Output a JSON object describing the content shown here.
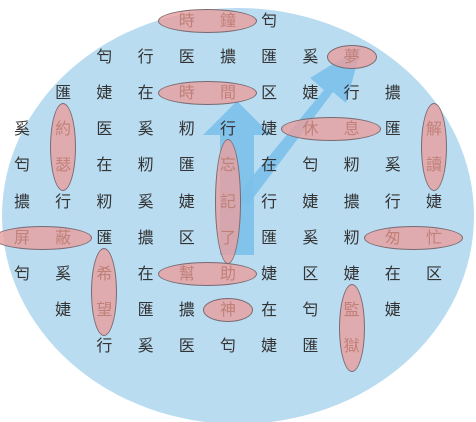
{
  "colors": {
    "background_circle": "#b9dcf1",
    "arrow": "#7cc0ea",
    "word_oval": "#e8a0a0",
    "grid_text": "#333333",
    "found_text": "#c08078"
  },
  "grid": {
    "rows": [
      [
        "",
        "",
        "",
        "",
        "時",
        "鐘",
        "匄",
        "",
        "",
        "",
        ""
      ],
      [
        "",
        "",
        "匄",
        "行",
        "医",
        "擃",
        "匯",
        "奚",
        "夢",
        "",
        ""
      ],
      [
        "",
        "匯",
        "婕",
        "在",
        "時",
        "間",
        "区",
        "婕",
        "行",
        "擃",
        ""
      ],
      [
        "奚",
        "約",
        "医",
        "奚",
        "籾",
        "行",
        "婕",
        "休",
        "息",
        "匯",
        "解"
      ],
      [
        "匄",
        "瑟",
        "在",
        "籾",
        "匯",
        "忘",
        "在",
        "匄",
        "籾",
        "奚",
        "讀"
      ],
      [
        "擃",
        "行",
        "籾",
        "奚",
        "婕",
        "記",
        "行",
        "婕",
        "擃",
        "行",
        "婕"
      ],
      [
        "屏",
        "蔽",
        "匯",
        "擃",
        "区",
        "了",
        "匯",
        "奚",
        "籾",
        "匆",
        "忙"
      ],
      [
        "匄",
        "奚",
        "希",
        "在",
        "幫",
        "助",
        "婕",
        "区",
        "婕",
        "在",
        "区"
      ],
      [
        "",
        "婕",
        "望",
        "匯",
        "擃",
        "神",
        "在",
        "匄",
        "監",
        "婕",
        ""
      ],
      [
        "",
        "",
        "行",
        "奚",
        "医",
        "匄",
        "婕",
        "匯",
        "獄",
        "",
        ""
      ]
    ]
  },
  "found_words": [
    {
      "word": "時鐘",
      "row": 0,
      "col": 4,
      "dir": "h",
      "len": 2
    },
    {
      "word": "夢",
      "row": 1,
      "col": 8,
      "dir": "h",
      "len": 1
    },
    {
      "word": "時間",
      "row": 2,
      "col": 4,
      "dir": "h",
      "len": 2
    },
    {
      "word": "約瑟",
      "row": 3,
      "col": 1,
      "dir": "v",
      "len": 2
    },
    {
      "word": "休息",
      "row": 3,
      "col": 7,
      "dir": "h",
      "len": 2
    },
    {
      "word": "解讀",
      "row": 3,
      "col": 10,
      "dir": "v",
      "len": 2
    },
    {
      "word": "忘記了",
      "row": 4,
      "col": 5,
      "dir": "v",
      "len": 3
    },
    {
      "word": "屏蔽",
      "row": 6,
      "col": 0,
      "dir": "h",
      "len": 2
    },
    {
      "word": "匆忙",
      "row": 6,
      "col": 9,
      "dir": "h",
      "len": 2
    },
    {
      "word": "希望",
      "row": 7,
      "col": 2,
      "dir": "v",
      "len": 2
    },
    {
      "word": "幫助",
      "row": 7,
      "col": 4,
      "dir": "h",
      "len": 2
    },
    {
      "word": "神",
      "row": 8,
      "col": 5,
      "dir": "h",
      "len": 1
    },
    {
      "word": "監獄",
      "row": 8,
      "col": 8,
      "dir": "v",
      "len": 2
    }
  ],
  "arrows": [
    {
      "name": "arrow-up",
      "icon": "up-arrow-icon"
    },
    {
      "name": "arrow-up-right",
      "icon": "up-right-arrow-icon"
    }
  ]
}
